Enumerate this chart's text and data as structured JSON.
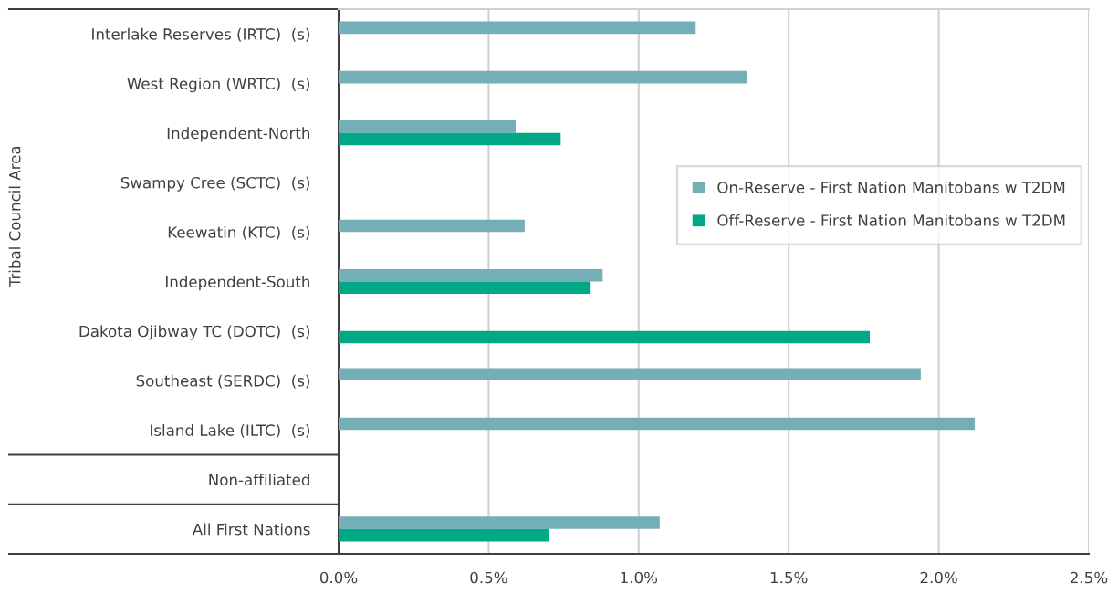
{
  "chart_data": {
    "type": "bar",
    "orientation": "horizontal",
    "ylabel": "Tribal Council Area",
    "categories": [
      "Interlake Reserves (IRTC)  (s)",
      "West Region (WRTC)  (s)",
      "Independent-North",
      "Swampy Cree (SCTC)  (s)",
      "Keewatin (KTC)  (s)",
      "Independent-South",
      "Dakota Ojibway TC (DOTC)  (s)",
      "Southeast (SERDC)  (s)",
      "Island Lake (ILTC)  (s)",
      "Non-affiliated",
      "All First Nations"
    ],
    "series": [
      {
        "name": "On-Reserve - First Nation Manitobans w T2DM",
        "color": "#74afb7",
        "values": [
          1.19,
          1.36,
          0.59,
          null,
          0.62,
          0.88,
          null,
          1.94,
          2.12,
          null,
          1.07
        ]
      },
      {
        "name": "Off-Reserve - First Nation Manitobans w T2DM",
        "color": "#00a886",
        "values": [
          null,
          null,
          0.74,
          null,
          null,
          0.84,
          1.77,
          null,
          null,
          null,
          0.7
        ]
      }
    ],
    "xlim": [
      0,
      2.5
    ],
    "xticks": [
      {
        "value": 0,
        "label": "0.0%"
      },
      {
        "value": 0.5,
        "label": "0.5%"
      },
      {
        "value": 1.0,
        "label": "1.0%"
      },
      {
        "value": 1.5,
        "label": "1.5%"
      },
      {
        "value": 2.0,
        "label": "2.0%"
      },
      {
        "value": 2.5,
        "label": "2.5%"
      }
    ],
    "grid": "x",
    "legend": "right"
  }
}
